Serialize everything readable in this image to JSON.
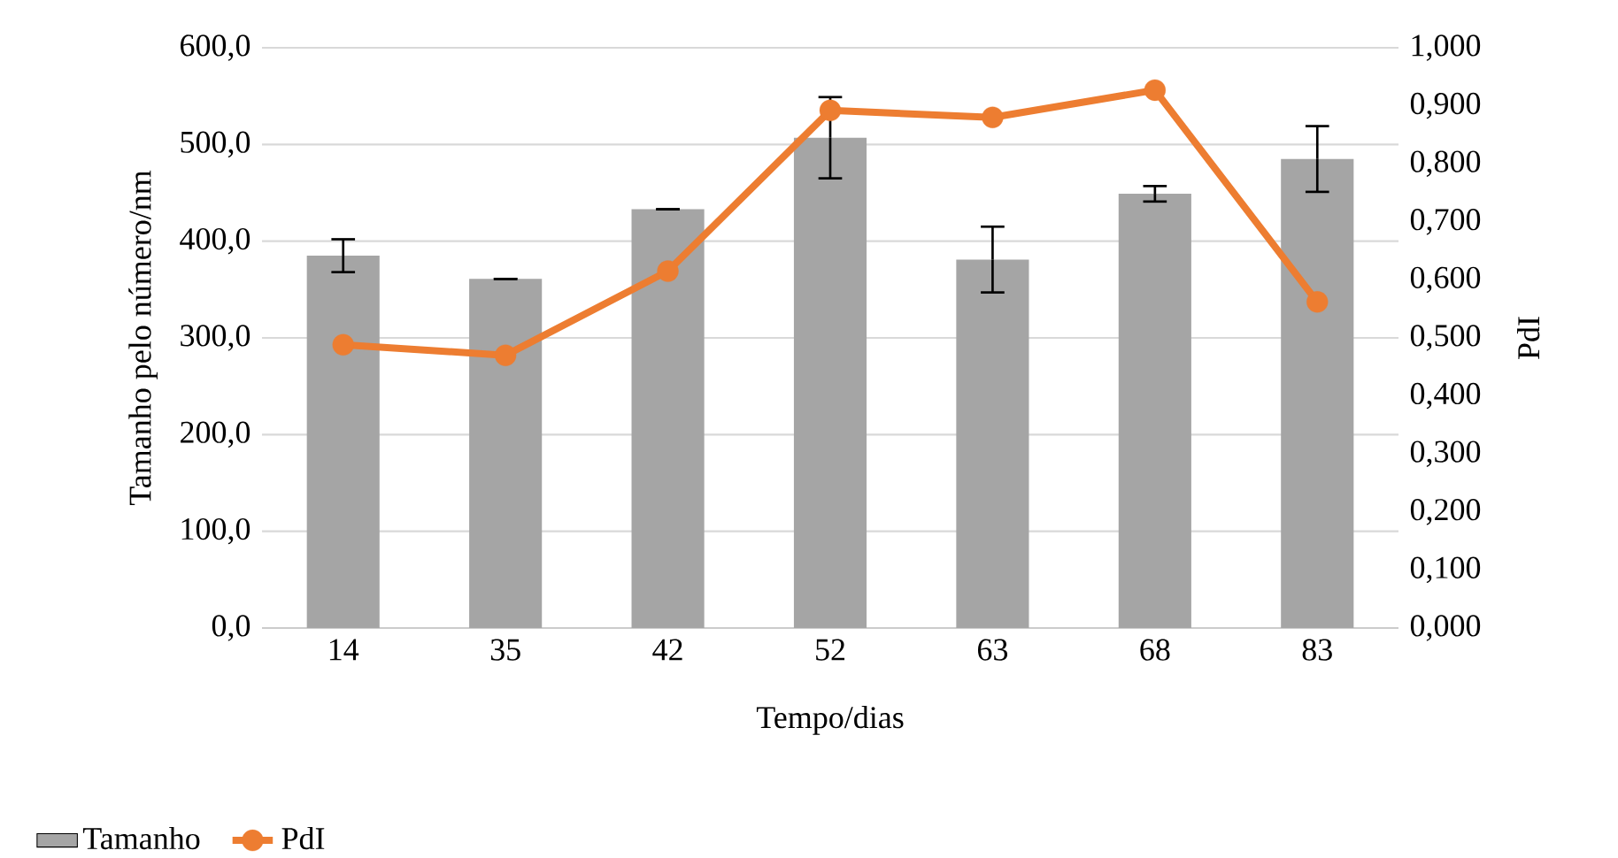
{
  "chart_data": {
    "type": "bar",
    "categories": [
      "14",
      "35",
      "42",
      "52",
      "63",
      "68",
      "83"
    ],
    "xlabel": "Tempo/dias",
    "ylabel": "Tamanho pelo número/nm",
    "y2label": "PdI",
    "ylim": [
      0,
      600
    ],
    "yticks": [
      {
        "value": 0,
        "label": "0,0"
      },
      {
        "value": 100,
        "label": "100,0"
      },
      {
        "value": 200,
        "label": "200,0"
      },
      {
        "value": 300,
        "label": "300,0"
      },
      {
        "value": 400,
        "label": "400,0"
      },
      {
        "value": 500,
        "label": "500,0"
      },
      {
        "value": 600,
        "label": "600,0"
      }
    ],
    "y2lim": [
      0,
      1
    ],
    "y2ticks": [
      {
        "value": 0,
        "label": "0,000"
      },
      {
        "value": 0.1,
        "label": "0,100"
      },
      {
        "value": 0.2,
        "label": "0,200"
      },
      {
        "value": 0.3,
        "label": "0,300"
      },
      {
        "value": 0.4,
        "label": "0,400"
      },
      {
        "value": 0.5,
        "label": "0,500"
      },
      {
        "value": 0.6,
        "label": "0,600"
      },
      {
        "value": 0.7,
        "label": "0,700"
      },
      {
        "value": 0.8,
        "label": "0,800"
      },
      {
        "value": 0.9,
        "label": "0,900"
      },
      {
        "value": 1,
        "label": "1,000"
      }
    ],
    "grid": "y",
    "legend": "bottom left",
    "series": [
      {
        "name": "Tamanho",
        "color": "#a5a5a5",
        "values": [
          385,
          361,
          433,
          507,
          381,
          449,
          485
        ],
        "errors": [
          17,
          0,
          0,
          42,
          34,
          8,
          34
        ]
      },
      {
        "name": "PdI",
        "type": "line",
        "axis": "y2",
        "color": "#ed7d31",
        "marker": "circle",
        "values": [
          0.488,
          0.47,
          0.615,
          0.892,
          0.88,
          0.927,
          0.562
        ]
      }
    ]
  }
}
